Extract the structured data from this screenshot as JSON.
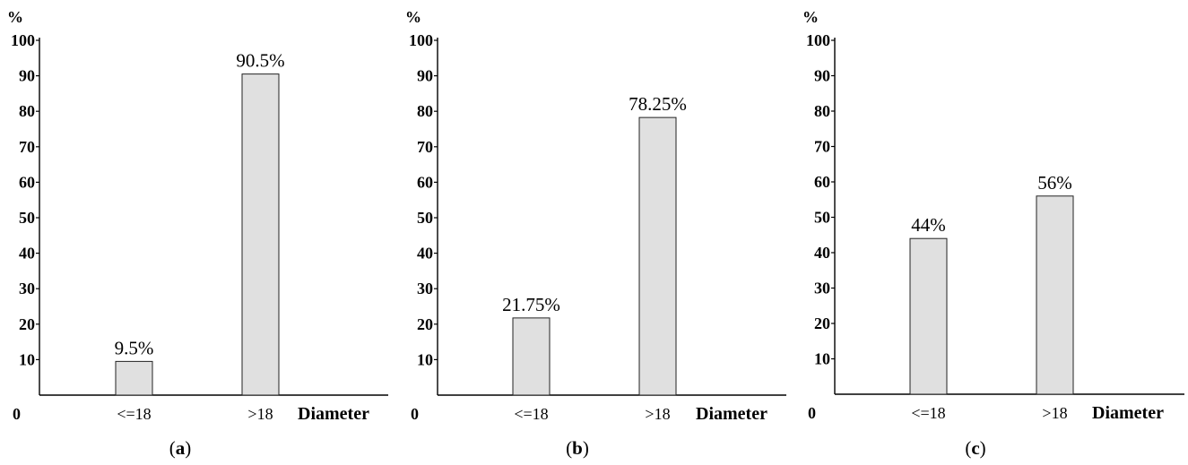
{
  "chart_data": [
    {
      "type": "bar",
      "panel": "a",
      "categories": [
        "<=18",
        ">18"
      ],
      "values": [
        9.5,
        90.5
      ],
      "data_labels": [
        "9.5%",
        "90.5%"
      ],
      "ylabel": "%",
      "xlabel": "Diameter",
      "origin_label": "0",
      "yticks": [
        10,
        20,
        30,
        40,
        50,
        60,
        70,
        80,
        90,
        100
      ],
      "ylim": [
        0,
        100
      ],
      "grid": false,
      "bar_color": "#e0e0e0"
    },
    {
      "type": "bar",
      "panel": "b",
      "categories": [
        "<=18",
        ">18"
      ],
      "values": [
        21.75,
        78.25
      ],
      "data_labels": [
        "21.75%",
        "78.25%"
      ],
      "ylabel": "%",
      "xlabel": "Diameter",
      "origin_label": "0",
      "yticks": [
        10,
        20,
        30,
        40,
        50,
        60,
        70,
        80,
        90,
        100
      ],
      "ylim": [
        0,
        100
      ],
      "grid": false,
      "bar_color": "#e0e0e0"
    },
    {
      "type": "bar",
      "panel": "c",
      "categories": [
        "<=18",
        ">18"
      ],
      "values": [
        44,
        56
      ],
      "data_labels": [
        "44%",
        "56%"
      ],
      "ylabel": "%",
      "xlabel": "Diameter",
      "origin_label": "0",
      "yticks": [
        10,
        20,
        30,
        40,
        50,
        60,
        70,
        80,
        90,
        100
      ],
      "ylim": [
        0,
        100
      ],
      "grid": false,
      "bar_color": "#e0e0e0"
    }
  ],
  "panel_labels": [
    {
      "open": "(",
      "letter": "a",
      "close": ")"
    },
    {
      "open": "(",
      "letter": "b",
      "close": ")"
    },
    {
      "open": "(",
      "letter": "c",
      "close": ")"
    }
  ]
}
